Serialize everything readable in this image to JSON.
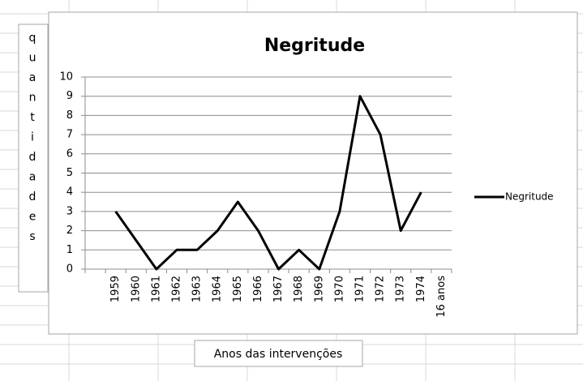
{
  "chart_data": {
    "type": "line",
    "title": "Negritude",
    "y_label": "quantidades",
    "x_label": "Anos das intervenções",
    "categories": [
      null,
      "1959",
      "1960",
      "1961",
      "1962",
      "1963",
      "1964",
      "1965",
      "1966",
      "1967",
      "1968",
      "1969",
      "1970",
      "1971",
      "1972",
      "1973",
      "1974",
      "16 anos"
    ],
    "series": [
      {
        "name": "Negritude",
        "color": "#000000",
        "values": [
          null,
          3,
          1.5,
          0,
          1,
          1,
          2,
          3.5,
          2,
          0,
          1,
          0,
          3,
          9,
          7,
          2,
          4,
          null
        ]
      }
    ],
    "ylim": [
      0,
      10
    ],
    "yticks": [
      0,
      1,
      2,
      3,
      4,
      5,
      6,
      7,
      8,
      9,
      10
    ],
    "grid": true,
    "legend": "right"
  }
}
